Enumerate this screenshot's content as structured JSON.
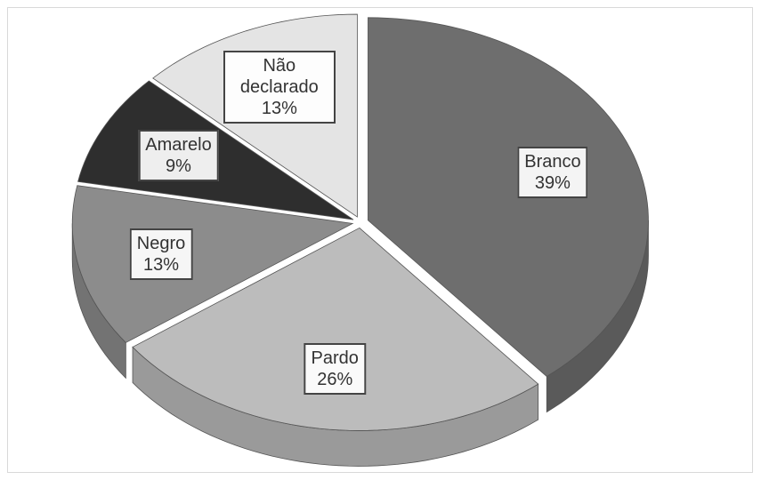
{
  "chart_data": {
    "type": "pie",
    "categories": [
      "Branco",
      "Pardo",
      "Negro",
      "Amarelo",
      "Não declarado"
    ],
    "values": [
      39,
      26,
      13,
      9,
      13
    ],
    "value_labels": [
      "39%",
      "26%",
      "13%",
      "9%",
      "13%"
    ],
    "colors": [
      "#6e6e6e",
      "#bcbcbc",
      "#8c8c8c",
      "#2e2e2e",
      "#e4e4e4"
    ]
  }
}
